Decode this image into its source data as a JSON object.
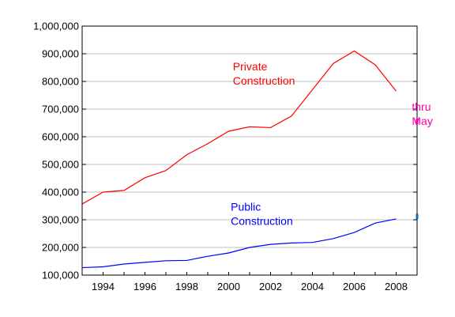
{
  "chart_data": {
    "type": "line",
    "title": "",
    "xlabel": "",
    "ylabel": "",
    "xlim": [
      1993,
      2009
    ],
    "ylim": [
      100000,
      1000000
    ],
    "grid": true,
    "legend": "none",
    "x_tick_labels": [
      "1994",
      "1996",
      "1998",
      "2000",
      "2002",
      "2004",
      "2006",
      "2008"
    ],
    "y_tick_labels": [
      "100,000",
      "200,000",
      "300,000",
      "400,000",
      "500,000",
      "600,000",
      "700,000",
      "800,000",
      "900,000",
      "1,000,000"
    ],
    "series": [
      {
        "name": "Private Construction",
        "color": "#ff0000",
        "x": [
          1993,
          1994,
          1995,
          1996,
          1997,
          1998,
          1999,
          2000,
          2001,
          2002,
          2003,
          2004,
          2005,
          2006,
          2007,
          2008
        ],
        "values": [
          357000,
          400000,
          406000,
          452000,
          478000,
          535000,
          575000,
          620000,
          636000,
          633000,
          675000,
          770000,
          865000,
          910000,
          860000,
          765000
        ]
      },
      {
        "name": "Public Construction",
        "color": "#0000ff",
        "x": [
          1993,
          1994,
          1995,
          1996,
          1997,
          1998,
          1999,
          2000,
          2001,
          2002,
          2003,
          2004,
          2005,
          2006,
          2007,
          2008
        ],
        "values": [
          127000,
          130000,
          140000,
          146000,
          152000,
          153000,
          168000,
          180000,
          200000,
          211000,
          216000,
          218000,
          232000,
          254000,
          288000,
          303000
        ]
      }
    ],
    "points": [
      {
        "series": "Private Construction",
        "x": 2009,
        "y": 655000,
        "color": "#ff00aa"
      },
      {
        "series": "Public Construction",
        "x": 2009,
        "y": 312000,
        "color": "#0070c0"
      }
    ],
    "annotations": [
      {
        "id": "private",
        "lines": [
          "Private",
          "Construction"
        ],
        "color": "#ff0000",
        "x": 2000.2,
        "y": 840000
      },
      {
        "id": "public",
        "lines": [
          "Public",
          "Construction"
        ],
        "color": "#0000ff",
        "x": 2000.1,
        "y": 333000
      },
      {
        "id": "thru",
        "lines": [
          "thru",
          "May"
        ],
        "color": "#ff00aa",
        "x": 2008.75,
        "y": 695000
      }
    ]
  }
}
